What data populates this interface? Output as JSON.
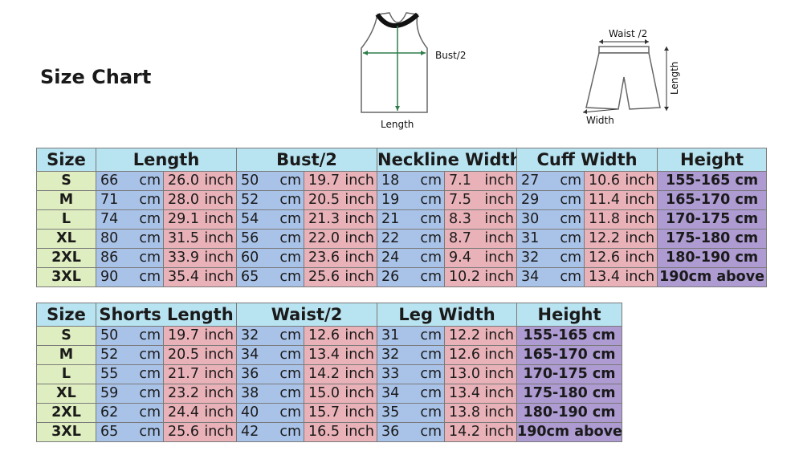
{
  "title": "Size Chart",
  "top_labels": {
    "bust": "Bust/2",
    "length": "Length",
    "waist": "Waist /2",
    "shorts_length": "Length",
    "width": "Width"
  },
  "units": {
    "cm": "cm",
    "inch": "inch"
  },
  "table1": {
    "headers": [
      "Size",
      "Length",
      "Bust/2",
      "Neckline Width",
      "Cuff Width",
      "Height"
    ],
    "rows": [
      {
        "size": "S",
        "vals": [
          "66",
          "26.0",
          "50",
          "19.7",
          "18",
          "7.1",
          "27",
          "10.6"
        ],
        "height": "155-165 cm"
      },
      {
        "size": "M",
        "vals": [
          "71",
          "28.0",
          "52",
          "20.5",
          "19",
          "7.5",
          "29",
          "11.4"
        ],
        "height": "165-170 cm"
      },
      {
        "size": "L",
        "vals": [
          "74",
          "29.1",
          "54",
          "21.3",
          "21",
          "8.3",
          "30",
          "11.8"
        ],
        "height": "170-175 cm"
      },
      {
        "size": "XL",
        "vals": [
          "80",
          "31.5",
          "56",
          "22.0",
          "22",
          "8.7",
          "31",
          "12.2"
        ],
        "height": "175-180 cm"
      },
      {
        "size": "2XL",
        "vals": [
          "86",
          "33.9",
          "60",
          "23.6",
          "24",
          "9.4",
          "32",
          "12.6"
        ],
        "height": "180-190 cm"
      },
      {
        "size": "3XL",
        "vals": [
          "90",
          "35.4",
          "65",
          "25.6",
          "26",
          "10.2",
          "34",
          "13.4"
        ],
        "height": "190cm above"
      }
    ]
  },
  "table2": {
    "headers": [
      "Size",
      "Shorts Length",
      "Waist/2",
      "Leg Width",
      "Height"
    ],
    "rows": [
      {
        "size": "S",
        "vals": [
          "50",
          "19.7",
          "32",
          "12.6",
          "31",
          "12.2"
        ],
        "height": "155-165 cm"
      },
      {
        "size": "M",
        "vals": [
          "52",
          "20.5",
          "34",
          "13.4",
          "32",
          "12.6"
        ],
        "height": "165-170 cm"
      },
      {
        "size": "L",
        "vals": [
          "55",
          "21.7",
          "36",
          "14.2",
          "33",
          "13.0"
        ],
        "height": "170-175 cm"
      },
      {
        "size": "XL",
        "vals": [
          "59",
          "23.2",
          "38",
          "15.0",
          "34",
          "13.4"
        ],
        "height": "175-180 cm"
      },
      {
        "size": "2XL",
        "vals": [
          "62",
          "24.4",
          "40",
          "15.7",
          "35",
          "13.8"
        ],
        "height": "180-190 cm"
      },
      {
        "size": "3XL",
        "vals": [
          "65",
          "25.6",
          "42",
          "16.5",
          "36",
          "14.2"
        ],
        "height": "190cm above"
      }
    ]
  }
}
